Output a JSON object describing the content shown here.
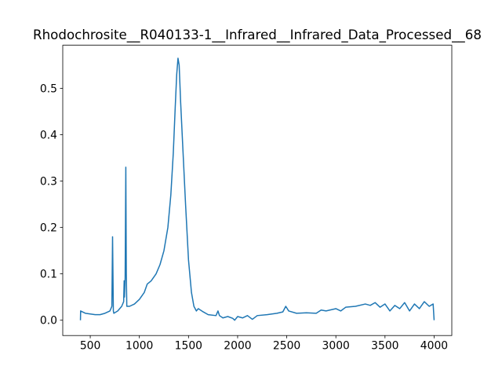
{
  "chart_data": {
    "type": "line",
    "title": "Rhodochrosite__R040133-1__Infrared__Infrared_Data_Processed__68",
    "color": "#1f77b4",
    "x": [
      400,
      402,
      450,
      550,
      600,
      650,
      700,
      720,
      727,
      735,
      740,
      780,
      820,
      840,
      845,
      848,
      855,
      862,
      867,
      872,
      900,
      950,
      1000,
      1050,
      1080,
      1120,
      1170,
      1210,
      1250,
      1290,
      1320,
      1345,
      1365,
      1380,
      1393,
      1405,
      1420,
      1445,
      1470,
      1500,
      1530,
      1555,
      1580,
      1600,
      1650,
      1700,
      1780,
      1800,
      1815,
      1850,
      1900,
      1950,
      1970,
      2000,
      2050,
      2100,
      2150,
      2200,
      2300,
      2400,
      2460,
      2490,
      2520,
      2600,
      2700,
      2800,
      2850,
      2900,
      3000,
      3050,
      3100,
      3200,
      3300,
      3350,
      3400,
      3450,
      3500,
      3550,
      3600,
      3650,
      3700,
      3750,
      3800,
      3850,
      3900,
      3950,
      3990,
      4000
    ],
    "values": [
      0.0,
      0.02,
      0.015,
      0.012,
      0.012,
      0.015,
      0.02,
      0.03,
      0.18,
      0.02,
      0.015,
      0.02,
      0.03,
      0.04,
      0.085,
      0.05,
      0.09,
      0.33,
      0.1,
      0.03,
      0.03,
      0.035,
      0.045,
      0.06,
      0.078,
      0.085,
      0.1,
      0.12,
      0.15,
      0.2,
      0.27,
      0.36,
      0.46,
      0.53,
      0.565,
      0.55,
      0.47,
      0.36,
      0.25,
      0.13,
      0.06,
      0.03,
      0.02,
      0.025,
      0.018,
      0.012,
      0.01,
      0.02,
      0.01,
      0.005,
      0.008,
      0.004,
      0.0,
      0.008,
      0.005,
      0.01,
      0.002,
      0.01,
      0.012,
      0.015,
      0.018,
      0.03,
      0.02,
      0.015,
      0.016,
      0.015,
      0.022,
      0.02,
      0.025,
      0.02,
      0.028,
      0.03,
      0.035,
      0.032,
      0.038,
      0.028,
      0.035,
      0.02,
      0.032,
      0.025,
      0.038,
      0.02,
      0.035,
      0.025,
      0.04,
      0.03,
      0.035,
      0.0
    ],
    "xlim": [
      220,
      4180
    ],
    "ylim": [
      -0.033,
      0.593
    ],
    "xticks": [
      500,
      1000,
      1500,
      2000,
      2500,
      3000,
      3500,
      4000
    ],
    "yticks": [
      {
        "value": 0,
        "label": "0.0"
      },
      0.1,
      0.2,
      0.3,
      0.4,
      0.5
    ]
  }
}
